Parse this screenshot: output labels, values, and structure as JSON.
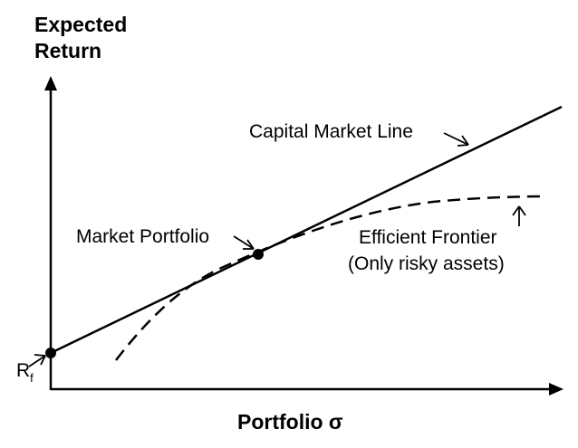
{
  "diagram": {
    "axis_y_label_line1": "Expected",
    "axis_y_label_line2": "Return",
    "axis_x_label": "Portfolio σ",
    "cml_label": "Capital Market Line",
    "market_portfolio_label": "Market Portfolio",
    "frontier_label_line1": "Efficient Frontier",
    "frontier_label_line2": "(Only risky assets)",
    "rf_label_main": "R",
    "rf_label_sub": "f"
  },
  "colors": {
    "ink": "#000000",
    "background": "#ffffff"
  }
}
